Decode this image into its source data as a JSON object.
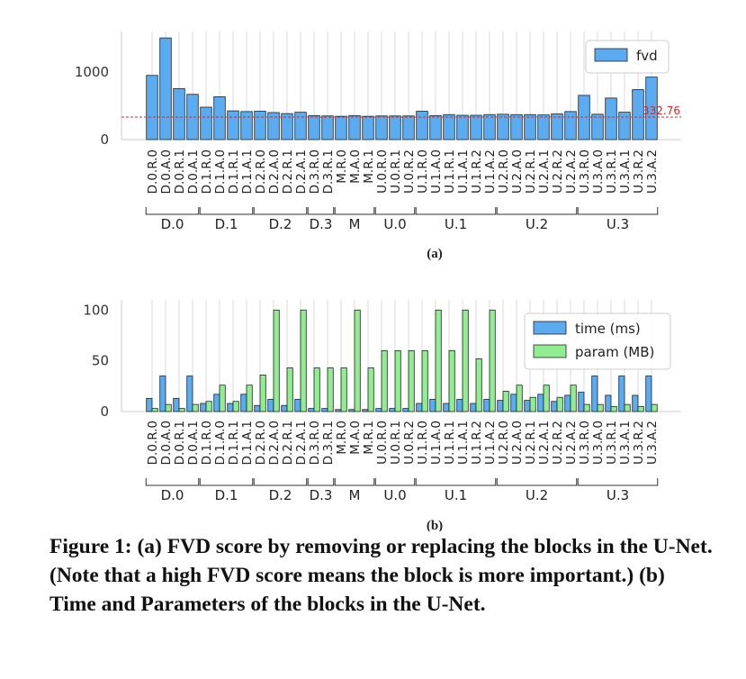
{
  "chart_data": [
    {
      "type": "bar",
      "sublabel": "(a)",
      "categories": [
        "D.0.R.0",
        "D.0.A.0",
        "D.0.R.1",
        "D.0.A.1",
        "D.1.R.0",
        "D.1.A.0",
        "D.1.R.1",
        "D.1.A.1",
        "D.2.R.0",
        "D.2.A.0",
        "D.2.R.1",
        "D.2.A.1",
        "D.3.R.0",
        "D.3.R.1",
        "M.R.0",
        "M.A.0",
        "M.R.1",
        "U.0.R.0",
        "U.0.R.1",
        "U.0.R.2",
        "U.1.R.0",
        "U.1.A.0",
        "U.1.R.1",
        "U.1.A.1",
        "U.1.R.2",
        "U.1.A.2",
        "U.2.R.0",
        "U.2.A.0",
        "U.2.R.1",
        "U.2.A.1",
        "U.2.R.2",
        "U.2.A.2",
        "U.3.R.0",
        "U.3.A.0",
        "U.3.R.1",
        "U.3.A.1",
        "U.3.R.2",
        "U.3.A.2"
      ],
      "groups": [
        {
          "label": "D.0",
          "start": 0,
          "end": 3
        },
        {
          "label": "D.1",
          "start": 4,
          "end": 7
        },
        {
          "label": "D.2",
          "start": 8,
          "end": 11
        },
        {
          "label": "D.3",
          "start": 12,
          "end": 13
        },
        {
          "label": "M",
          "start": 14,
          "end": 16
        },
        {
          "label": "U.0",
          "start": 17,
          "end": 19
        },
        {
          "label": "U.1",
          "start": 20,
          "end": 25
        },
        {
          "label": "U.2",
          "start": 26,
          "end": 31
        },
        {
          "label": "U.3",
          "start": 32,
          "end": 37
        }
      ],
      "series": [
        {
          "name": "fvd",
          "color": "#5aabf0",
          "values": [
            950,
            1505,
            755,
            670,
            480,
            635,
            425,
            415,
            420,
            400,
            385,
            405,
            355,
            350,
            345,
            355,
            345,
            350,
            350,
            350,
            420,
            355,
            370,
            360,
            360,
            370,
            375,
            370,
            370,
            365,
            380,
            415,
            655,
            375,
            615,
            405,
            740,
            925
          ]
        }
      ],
      "reference_line": {
        "value": 332.76,
        "label": "332.76",
        "color": "#d62728"
      },
      "ylim": [
        0,
        1600
      ],
      "yticks": [
        0,
        1000
      ],
      "grid": "vertical",
      "legend": "top-right"
    },
    {
      "type": "bar",
      "sublabel": "(b)",
      "categories": [
        "D.0.R.0",
        "D.0.A.0",
        "D.0.R.1",
        "D.0.A.1",
        "D.1.R.0",
        "D.1.A.0",
        "D.1.R.1",
        "D.1.A.1",
        "D.2.R.0",
        "D.2.A.0",
        "D.2.R.1",
        "D.2.A.1",
        "D.3.R.0",
        "D.3.R.1",
        "M.R.0",
        "M.A.0",
        "M.R.1",
        "U.0.R.0",
        "U.0.R.1",
        "U.0.R.2",
        "U.1.R.0",
        "U.1.A.0",
        "U.1.R.1",
        "U.1.A.1",
        "U.1.R.2",
        "U.1.A.2",
        "U.2.R.0",
        "U.2.A.0",
        "U.2.R.1",
        "U.2.A.1",
        "U.2.R.2",
        "U.2.A.2",
        "U.3.R.0",
        "U.3.A.0",
        "U.3.R.1",
        "U.3.A.1",
        "U.3.R.2",
        "U.3.A.2"
      ],
      "groups": [
        {
          "label": "D.0",
          "start": 0,
          "end": 3
        },
        {
          "label": "D.1",
          "start": 4,
          "end": 7
        },
        {
          "label": "D.2",
          "start": 8,
          "end": 11
        },
        {
          "label": "D.3",
          "start": 12,
          "end": 13
        },
        {
          "label": "M",
          "start": 14,
          "end": 16
        },
        {
          "label": "U.0",
          "start": 17,
          "end": 19
        },
        {
          "label": "U.1",
          "start": 20,
          "end": 25
        },
        {
          "label": "U.2",
          "start": 26,
          "end": 31
        },
        {
          "label": "U.3",
          "start": 32,
          "end": 37
        }
      ],
      "series": [
        {
          "name": "time (ms)",
          "color": "#5aabf0",
          "values": [
            13,
            35,
            13,
            35,
            8,
            17,
            8,
            17,
            6,
            12,
            6,
            12,
            3,
            3,
            2,
            2,
            2,
            3,
            3,
            3,
            8,
            12,
            8,
            12,
            8,
            12,
            11,
            17,
            11,
            17,
            10,
            16,
            19,
            35,
            16,
            35,
            16,
            35
          ]
        },
        {
          "name": "param (MB)",
          "color": "#90ee90",
          "values": [
            3,
            7,
            3,
            7,
            10,
            26,
            10,
            26,
            36,
            100,
            43,
            100,
            43,
            43,
            43,
            100,
            43,
            60,
            60,
            60,
            60,
            100,
            60,
            100,
            52,
            100,
            20,
            26,
            14,
            26,
            14,
            26,
            7,
            7,
            5,
            7,
            5,
            7
          ]
        }
      ],
      "ylim": [
        0,
        110
      ],
      "yticks": [
        0,
        50,
        100
      ],
      "grid": "vertical",
      "legend": "top-right"
    }
  ],
  "caption": "Figure 1: (a) FVD score by removing or replacing the blocks in the U-Net. (Note that a high FVD score means the block is more important.) (b) Time and Parameters of the blocks in the U-Net."
}
